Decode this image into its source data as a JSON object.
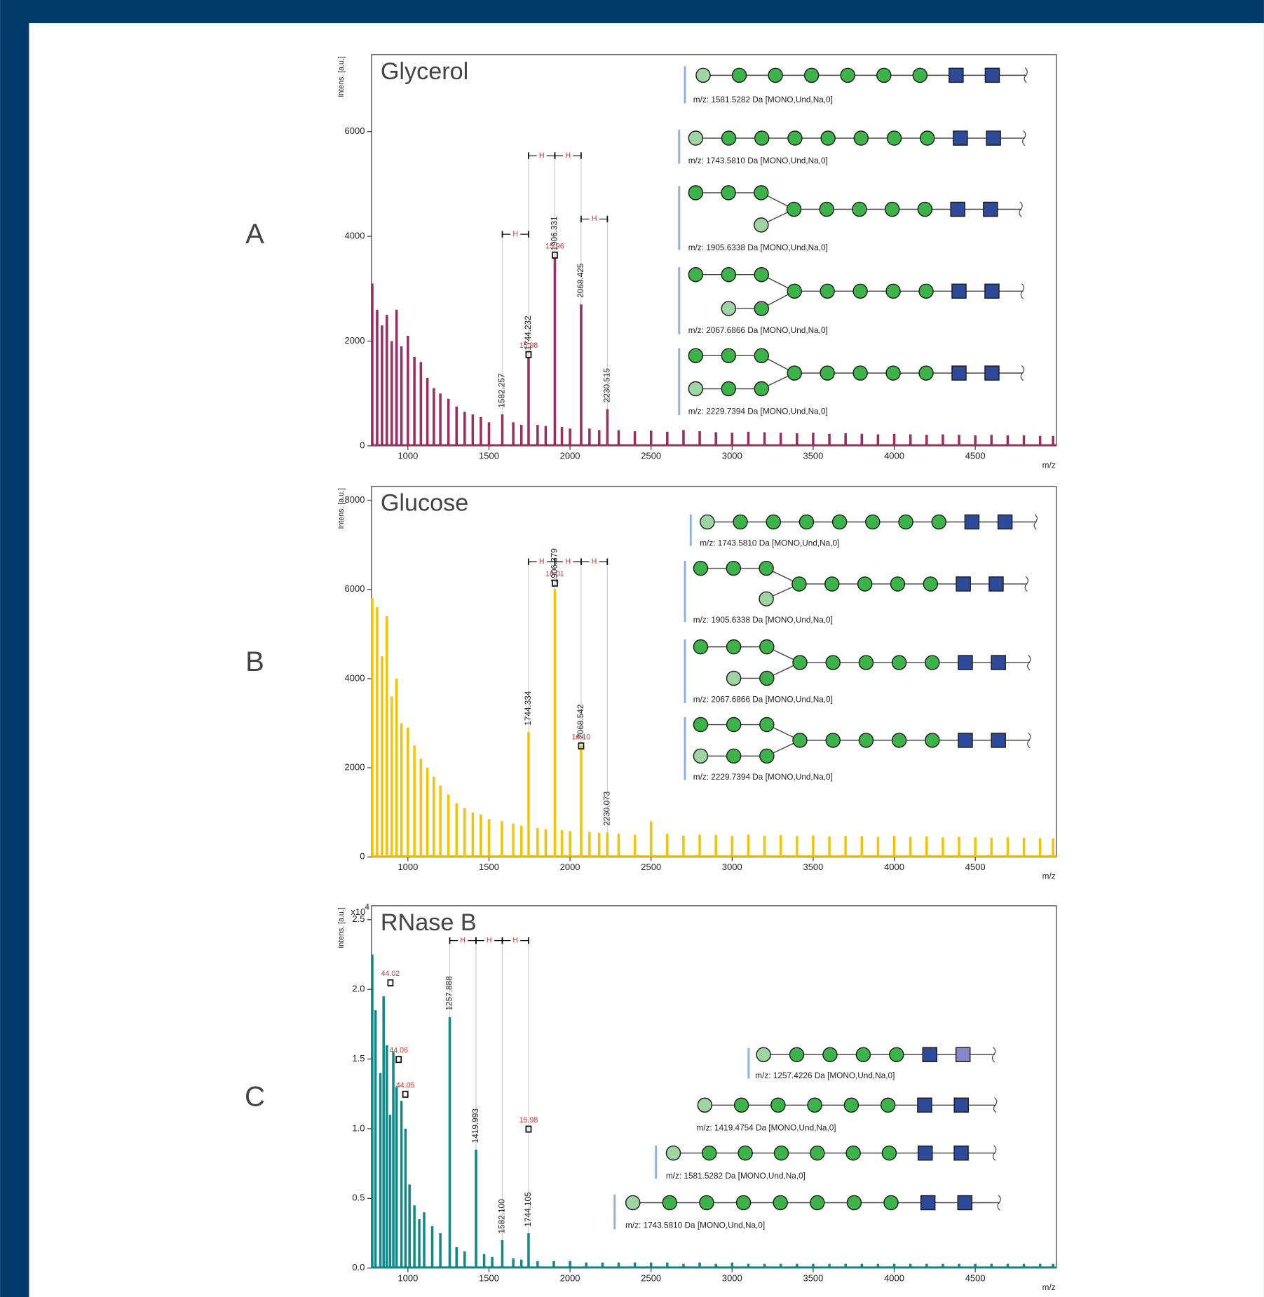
{
  "chart_data": [
    {
      "type": "spectrum",
      "panel_label": "A",
      "title": "Glycerol",
      "y_label": "Intens. [a.u.]",
      "x_label": "m/z",
      "color": "#9b2d5f",
      "xlim": [
        775,
        5000
      ],
      "xticks": [
        1000,
        1500,
        2000,
        2500,
        3000,
        3500,
        4000,
        4500
      ],
      "ylim": [
        0,
        7470
      ],
      "yticks": [
        0,
        2000,
        4000,
        6000
      ],
      "x": [
        780,
        810,
        840,
        870,
        900,
        930,
        960,
        1000,
        1040,
        1080,
        1120,
        1160,
        1200,
        1250,
        1300,
        1350,
        1400,
        1450,
        1500,
        1582.257,
        1650,
        1700,
        1744.232,
        1800,
        1850,
        1906.331,
        1950,
        2000,
        2068.425,
        2120,
        2180,
        2230.515,
        2300,
        2400,
        2500,
        2600,
        2700,
        2800,
        2900,
        3000,
        3100,
        3200,
        3300,
        3400,
        3500,
        3600,
        3700,
        3800,
        3900,
        4000,
        4100,
        4200,
        4300,
        4400,
        4500,
        4600,
        4700,
        4800,
        4900,
        4980
      ],
      "values": [
        3100,
        2600,
        2300,
        2500,
        2000,
        2600,
        1900,
        2100,
        1700,
        1600,
        1300,
        1100,
        1000,
        900,
        750,
        650,
        600,
        550,
        450,
        600,
        450,
        400,
        1700,
        400,
        380,
        3600,
        360,
        330,
        2700,
        330,
        300,
        700,
        300,
        280,
        290,
        270,
        300,
        280,
        260,
        250,
        270,
        260,
        250,
        240,
        250,
        230,
        240,
        230,
        220,
        230,
        220,
        210,
        220,
        210,
        200,
        210,
        200,
        200,
        190,
        190
      ],
      "peak_labels": [
        {
          "text": "1582.257",
          "x": 1582.257
        },
        {
          "text": "1744.232",
          "x": 1744.232
        },
        {
          "text": "1906.331",
          "x": 1906.331
        },
        {
          "text": "2068.425",
          "x": 2068.425
        },
        {
          "text": "2230.515",
          "x": 2230.515
        }
      ],
      "difference_labels": [
        {
          "text": "15.98",
          "x": 1744.232,
          "y": 1750
        },
        {
          "text": "15.96",
          "x": 1906.331,
          "y": 3650
        }
      ],
      "intervals": [
        {
          "label": "H",
          "x": [
            1582.257,
            1744.232
          ],
          "y": 4040
        },
        {
          "label": "H",
          "x": [
            1744.232,
            1906.331
          ],
          "y": 5540
        },
        {
          "label": "H",
          "x": [
            1906.331,
            2068.425
          ],
          "y": 5540
        },
        {
          "label": "H",
          "x": [
            2068.425,
            2230.515
          ],
          "y": 4330
        }
      ],
      "structures": [
        "m/z: 1581.5282 Da [MONO,Und,Na,0]",
        "m/z: 1743.5810 Da [MONO,Und,Na,0]",
        "m/z: 1905.6338 Da [MONO,Und,Na,0]",
        "m/z: 2067.6866 Da [MONO,Und,Na,0]",
        "m/z: 2229.7394 Da [MONO,Und,Na,0]"
      ]
    },
    {
      "type": "spectrum",
      "panel_label": "B",
      "title": "Glucose",
      "y_label": "Intens. [a.u.]",
      "x_label": "m/z",
      "color": "#f5c400",
      "xlim": [
        775,
        5000
      ],
      "xticks": [
        1000,
        1500,
        2000,
        2500,
        3000,
        3500,
        4000,
        4500
      ],
      "ylim": [
        0,
        8310
      ],
      "yticks": [
        0,
        2000,
        4000,
        6000,
        8000
      ],
      "x": [
        780,
        810,
        840,
        870,
        900,
        930,
        960,
        1000,
        1040,
        1080,
        1120,
        1160,
        1200,
        1250,
        1300,
        1350,
        1400,
        1450,
        1500,
        1580,
        1650,
        1700,
        1744.334,
        1800,
        1850,
        1906.379,
        1950,
        2000,
        2068.542,
        2120,
        2180,
        2230.073,
        2300,
        2400,
        2500,
        2600,
        2700,
        2800,
        2900,
        3000,
        3100,
        3200,
        3300,
        3400,
        3500,
        3600,
        3700,
        3800,
        3900,
        4000,
        4100,
        4200,
        4300,
        4400,
        4500,
        4600,
        4700,
        4800,
        4900,
        4980
      ],
      "values": [
        5800,
        5600,
        4500,
        5400,
        3600,
        4000,
        3000,
        2900,
        2500,
        2200,
        2000,
        1800,
        1600,
        1400,
        1200,
        1100,
        1000,
        950,
        850,
        800,
        750,
        700,
        2800,
        650,
        620,
        6000,
        600,
        580,
        2500,
        560,
        540,
        550,
        520,
        500,
        800,
        520,
        480,
        500,
        490,
        470,
        500,
        480,
        490,
        470,
        480,
        460,
        470,
        460,
        450,
        470,
        450,
        460,
        440,
        450,
        440,
        430,
        440,
        430,
        420,
        420
      ],
      "peak_labels": [
        {
          "text": "1744.334",
          "x": 1744.334
        },
        {
          "text": "1906.379",
          "x": 1906.379
        },
        {
          "text": "2068.542",
          "x": 2068.542
        },
        {
          "text": "2230.073",
          "x": 2230.073
        }
      ],
      "difference_labels": [
        {
          "text": "16.01",
          "x": 1906.379,
          "y": 6150
        },
        {
          "text": "16.10",
          "x": 2068.542,
          "y": 2500
        }
      ],
      "intervals": [
        {
          "label": "H",
          "x": [
            1744.334,
            1906.379
          ],
          "y": 6620
        },
        {
          "label": "H",
          "x": [
            1906.379,
            2068.542
          ],
          "y": 6620
        },
        {
          "label": "H",
          "x": [
            2068.542,
            2230.073
          ],
          "y": 6620
        }
      ],
      "structures": [
        "m/z: 1743.5810 Da [MONO,Und,Na,0]",
        "m/z: 1905.6338 Da [MONO,Und,Na,0]",
        "m/z: 2067.6866 Da [MONO,Und,Na,0]",
        "m/z: 2229.7394 Da [MONO,Und,Na,0]"
      ]
    },
    {
      "type": "spectrum",
      "panel_label": "C",
      "title": "RNase B",
      "y_label": "Intens. [a.u.]",
      "x_label": "m/z",
      "color": "#0f8a8a",
      "y_scale_label": "x10",
      "y_scale_exponent": "4",
      "xlim": [
        775,
        5000
      ],
      "xticks": [
        1000,
        1500,
        2000,
        2500,
        3000,
        3500,
        4000,
        4500
      ],
      "ylim": [
        0,
        2.6
      ],
      "yticks": [
        {
          "value": 0,
          "label": "0.0"
        },
        0.5,
        {
          "value": 1,
          "label": "1.0"
        },
        1.5,
        {
          "value": 2,
          "label": "2.0"
        },
        2.5
      ],
      "x": [
        780,
        800,
        830,
        850,
        870,
        890,
        910,
        930,
        960,
        985,
        1010,
        1040,
        1070,
        1100,
        1150,
        1200,
        1257.888,
        1300,
        1350,
        1419.993,
        1470,
        1520,
        1582.1,
        1650,
        1700,
        1744.105,
        1800,
        1900,
        2000,
        2100,
        2200,
        2300,
        2400,
        2500,
        2600,
        2700,
        2800,
        2900,
        3000,
        3100,
        3200,
        3300,
        3400,
        3500,
        3600,
        3700,
        3800,
        3900,
        4000,
        4100,
        4200,
        4300,
        4400,
        4500,
        4600,
        4700,
        4800,
        4900,
        4980
      ],
      "values": [
        2.25,
        1.85,
        1.4,
        1.95,
        1.6,
        1.1,
        1.55,
        1.3,
        1.2,
        1.0,
        0.6,
        0.45,
        0.35,
        0.4,
        0.3,
        0.25,
        1.8,
        0.15,
        0.12,
        0.85,
        0.1,
        0.08,
        0.2,
        0.07,
        0.06,
        0.25,
        0.05,
        0.05,
        0.05,
        0.04,
        0.04,
        0.04,
        0.04,
        0.04,
        0.04,
        0.03,
        0.04,
        0.03,
        0.04,
        0.03,
        0.03,
        0.03,
        0.03,
        0.03,
        0.03,
        0.03,
        0.03,
        0.03,
        0.03,
        0.03,
        0.03,
        0.03,
        0.03,
        0.03,
        0.03,
        0.03,
        0.03,
        0.03,
        0.03
      ],
      "peak_labels": [
        {
          "text": "1257.888",
          "x": 1257.888
        },
        {
          "text": "1419.993",
          "x": 1419.993
        },
        {
          "text": "1582.100",
          "x": 1582.1
        },
        {
          "text": "1744.105",
          "x": 1744.105
        }
      ],
      "difference_labels": [
        {
          "text": "44.02",
          "x": 892,
          "y": 2.05
        },
        {
          "text": "44.06",
          "x": 943,
          "y": 1.5
        },
        {
          "text": "44.05",
          "x": 984,
          "y": 1.25
        },
        {
          "text": "15.98",
          "x": 1744.105,
          "y": 1.0
        }
      ],
      "intervals": [
        {
          "label": "H",
          "x": [
            1257.888,
            1419.993
          ],
          "y": 2.35
        },
        {
          "label": "H",
          "x": [
            1419.993,
            1582.1
          ],
          "y": 2.35
        },
        {
          "label": "H",
          "x": [
            1582.1,
            1744.105
          ],
          "y": 2.35
        }
      ],
      "structures": [
        "m/z: 1257.4226 Da [MONO,Und,Na,0]",
        "m/z: 1419.4754 Da [MONO,Und,Na,0]",
        "m/z: 1581.5282 Da [MONO,Und,Na,0]",
        "m/z: 1743.5810 Da [MONO,Und,Na,0]"
      ]
    }
  ]
}
